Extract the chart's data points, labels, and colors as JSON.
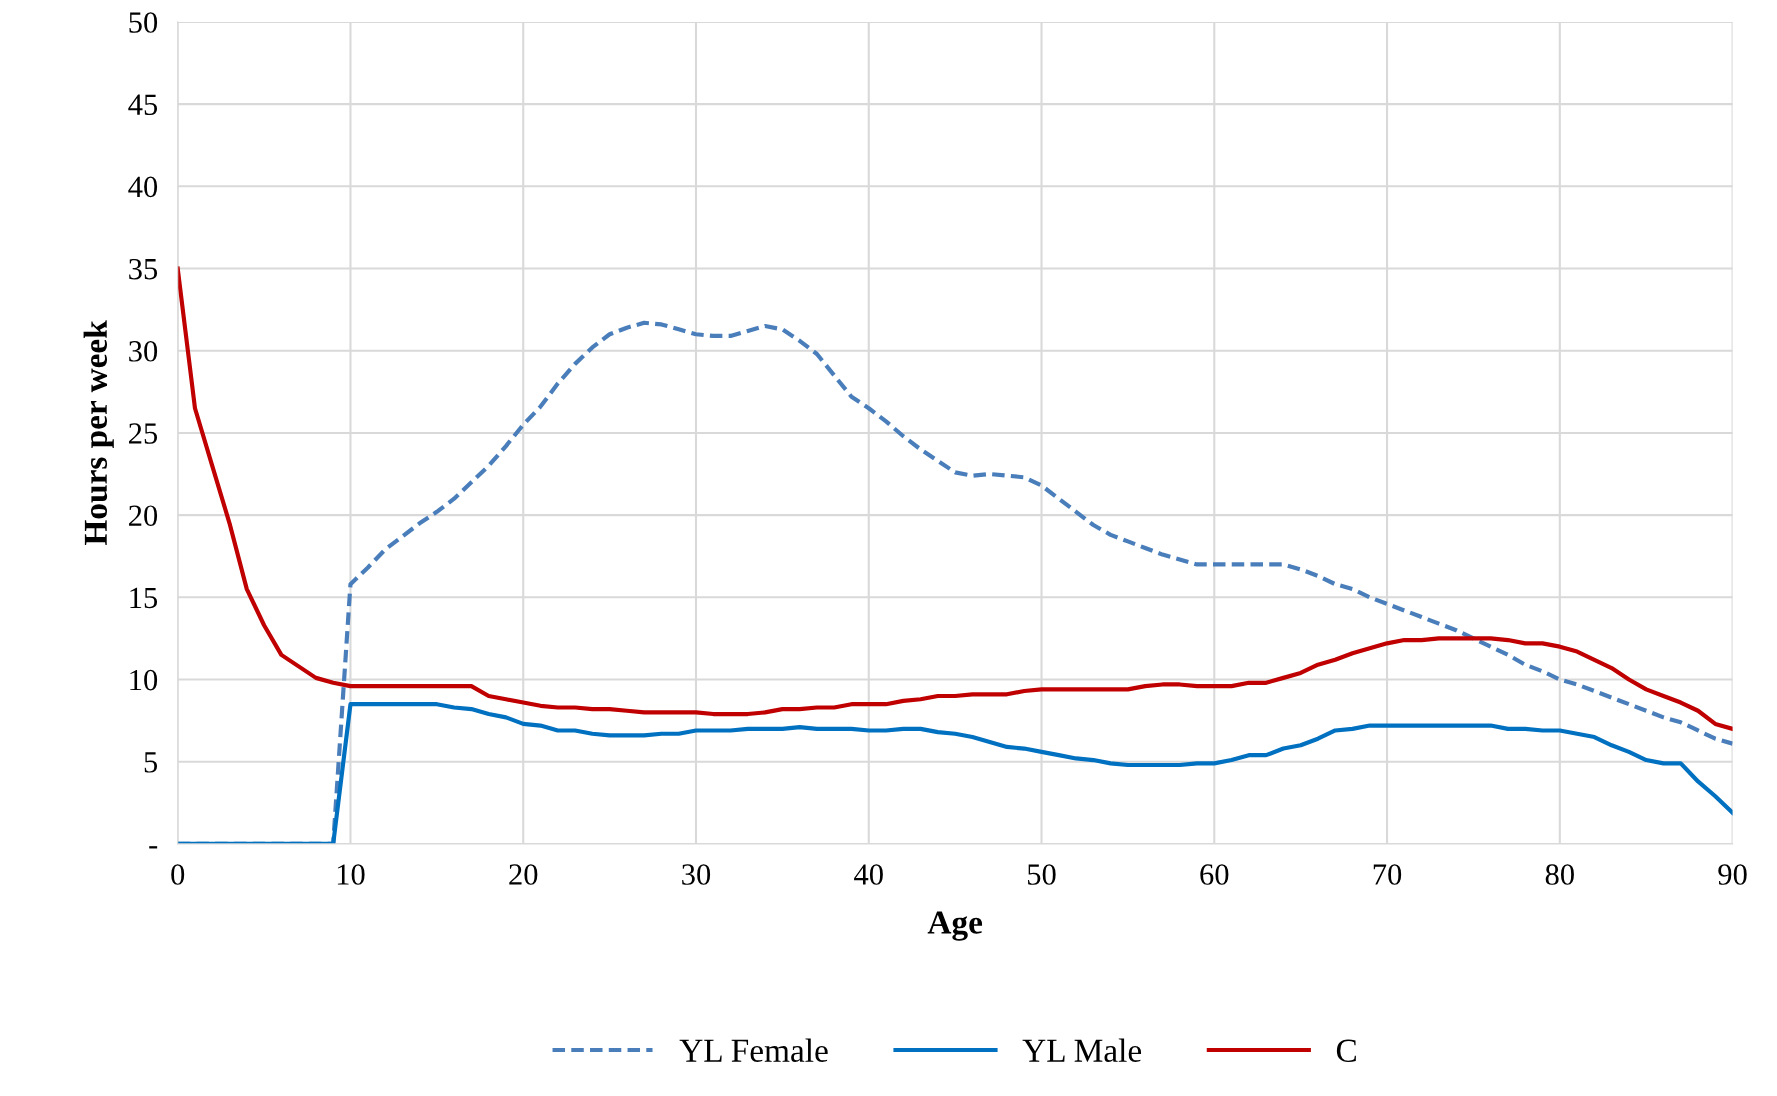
{
  "chart_data": {
    "type": "line",
    "xlabel": "Age",
    "ylabel": "Hours per week",
    "x": [
      0,
      1,
      2,
      3,
      4,
      5,
      6,
      7,
      8,
      9,
      10,
      11,
      12,
      13,
      14,
      15,
      16,
      17,
      18,
      19,
      20,
      21,
      22,
      23,
      24,
      25,
      26,
      27,
      28,
      29,
      30,
      31,
      32,
      33,
      34,
      35,
      36,
      37,
      38,
      39,
      40,
      41,
      42,
      43,
      44,
      45,
      46,
      47,
      48,
      49,
      50,
      51,
      52,
      53,
      54,
      55,
      56,
      57,
      58,
      59,
      60,
      61,
      62,
      63,
      64,
      65,
      66,
      67,
      68,
      69,
      70,
      71,
      72,
      73,
      74,
      75,
      76,
      77,
      78,
      79,
      80,
      81,
      82,
      83,
      84,
      85,
      86,
      87,
      88,
      89,
      90
    ],
    "series": [
      {
        "name": "YL Female",
        "color": "#4a7ebb",
        "line_style": "dashed",
        "values": [
          0,
          0,
          0,
          0,
          0,
          0,
          0,
          0,
          0,
          0,
          15.8,
          16.8,
          17.9,
          18.7,
          19.5,
          20.2,
          21.0,
          22.0,
          23.0,
          24.2,
          25.5,
          26.6,
          28.0,
          29.2,
          30.2,
          31.0,
          31.4,
          31.7,
          31.6,
          31.3,
          31.0,
          30.9,
          30.9,
          31.2,
          31.5,
          31.3,
          30.6,
          29.8,
          28.5,
          27.2,
          26.5,
          25.7,
          24.8,
          24.0,
          23.3,
          22.6,
          22.4,
          22.5,
          22.4,
          22.3,
          21.8,
          21.0,
          20.2,
          19.4,
          18.8,
          18.4,
          18.0,
          17.6,
          17.3,
          17.0,
          17.0,
          17.0,
          17.0,
          17.0,
          17.0,
          16.7,
          16.3,
          15.8,
          15.5,
          15.0,
          14.6,
          14.2,
          13.8,
          13.4,
          13.0,
          12.5,
          12.0,
          11.5,
          10.9,
          10.5,
          10.0,
          9.7,
          9.3,
          8.9,
          8.5,
          8.1,
          7.7,
          7.4,
          6.9,
          6.4,
          6.1
        ]
      },
      {
        "name": "YL Male",
        "color": "#0070c0",
        "line_style": "solid",
        "values": [
          0,
          0,
          0,
          0,
          0,
          0,
          0,
          0,
          0,
          0,
          8.5,
          8.5,
          8.5,
          8.5,
          8.5,
          8.5,
          8.3,
          8.2,
          7.9,
          7.7,
          7.3,
          7.2,
          6.9,
          6.9,
          6.7,
          6.6,
          6.6,
          6.6,
          6.7,
          6.7,
          6.9,
          6.9,
          6.9,
          7.0,
          7.0,
          7.0,
          7.1,
          7.0,
          7.0,
          7.0,
          6.9,
          6.9,
          7.0,
          7.0,
          6.8,
          6.7,
          6.5,
          6.2,
          5.9,
          5.8,
          5.6,
          5.4,
          5.2,
          5.1,
          4.9,
          4.8,
          4.8,
          4.8,
          4.8,
          4.9,
          4.9,
          5.1,
          5.4,
          5.4,
          5.8,
          6.0,
          6.4,
          6.9,
          7.0,
          7.2,
          7.2,
          7.2,
          7.2,
          7.2,
          7.2,
          7.2,
          7.2,
          7.0,
          7.0,
          6.9,
          6.9,
          6.7,
          6.5,
          6.0,
          5.6,
          5.1,
          4.9,
          4.9,
          3.8,
          2.9,
          1.9
        ]
      },
      {
        "name": "C",
        "color": "#c00000",
        "line_style": "solid",
        "values": [
          35,
          26.5,
          23,
          19.5,
          15.5,
          13.3,
          11.5,
          10.8,
          10.1,
          9.8,
          9.6,
          9.6,
          9.6,
          9.6,
          9.6,
          9.6,
          9.6,
          9.6,
          9.0,
          8.8,
          8.6,
          8.4,
          8.3,
          8.3,
          8.2,
          8.2,
          8.1,
          8.0,
          8.0,
          8.0,
          8.0,
          7.9,
          7.9,
          7.9,
          8.0,
          8.2,
          8.2,
          8.3,
          8.3,
          8.5,
          8.5,
          8.5,
          8.7,
          8.8,
          9.0,
          9.0,
          9.1,
          9.1,
          9.1,
          9.3,
          9.4,
          9.4,
          9.4,
          9.4,
          9.4,
          9.4,
          9.6,
          9.7,
          9.7,
          9.6,
          9.6,
          9.6,
          9.8,
          9.8,
          10.1,
          10.4,
          10.9,
          11.2,
          11.6,
          11.9,
          12.2,
          12.4,
          12.4,
          12.5,
          12.5,
          12.5,
          12.5,
          12.4,
          12.2,
          12.2,
          12.0,
          11.7,
          11.2,
          10.7,
          10.0,
          9.4,
          9.0,
          8.6,
          8.1,
          7.3,
          7.0
        ]
      }
    ],
    "xlim": [
      0,
      90
    ],
    "xticks": [
      0,
      10,
      20,
      30,
      40,
      50,
      60,
      70,
      80,
      90
    ],
    "ylim": [
      0,
      50
    ],
    "yticks": [
      {
        "value": 0,
        "label": "-"
      },
      5,
      10,
      15,
      20,
      25,
      30,
      35,
      40,
      45,
      50
    ],
    "grid": true,
    "legend": "bottom",
    "marker": "none"
  }
}
